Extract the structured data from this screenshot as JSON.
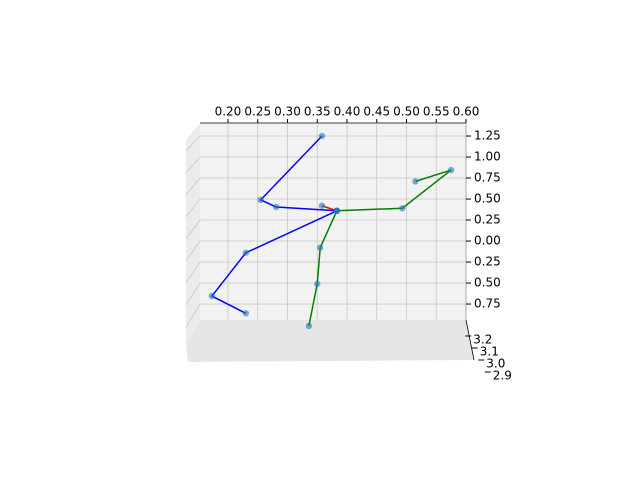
{
  "chart_data": {
    "type": "line",
    "xlim": [
      0.153,
      0.6
    ],
    "ylim": [
      -0.94,
      1.405
    ],
    "zlim": [
      3.25,
      2.85
    ],
    "xticks": [
      {
        "value": 0.2,
        "label": "0.20"
      },
      0.25,
      {
        "value": 0.3,
        "label": "0.30"
      },
      0.35,
      {
        "value": 0.4,
        "label": "0.40"
      },
      0.45,
      {
        "value": 0.5,
        "label": "0.50"
      },
      0.55,
      {
        "value": 0.6,
        "label": "0.60"
      }
    ],
    "yticks": [
      1.25,
      {
        "value": 1.0,
        "label": "1.00"
      },
      0.75,
      {
        "value": 0.5,
        "label": "0.50"
      },
      0.25,
      {
        "value": 0.0,
        "label": "0.00"
      },
      {
        "value": -0.25,
        "label": "0.25"
      },
      {
        "value": -0.5,
        "label": "0.50"
      },
      {
        "value": -0.75,
        "label": "0.75"
      }
    ],
    "zticks": [
      3.2,
      3.1,
      {
        "value": 3.0,
        "label": "3.0"
      },
      2.9
    ],
    "grid": true,
    "marker_color": "#1f77b4",
    "series": [
      {
        "color": "#0000ff",
        "x": [
          0.358,
          0.255,
          0.281,
          0.383,
          0.23,
          0.173,
          0.23
        ],
        "values": [
          1.25,
          0.49,
          0.405,
          0.36,
          -0.14,
          -0.655,
          -0.86
        ]
      },
      {
        "color": "#008000",
        "x": [
          0.383,
          0.355,
          0.35,
          0.336
        ],
        "values": [
          0.36,
          -0.08,
          -0.51,
          -1.01
        ]
      },
      {
        "color": "#008000",
        "x": [
          0.383,
          0.493,
          0.575,
          0.515
        ],
        "values": [
          0.36,
          0.39,
          0.845,
          0.71
        ]
      },
      {
        "color": "#ff0000",
        "x": [
          0.358,
          0.383
        ],
        "values": [
          0.42,
          0.36
        ]
      }
    ]
  }
}
